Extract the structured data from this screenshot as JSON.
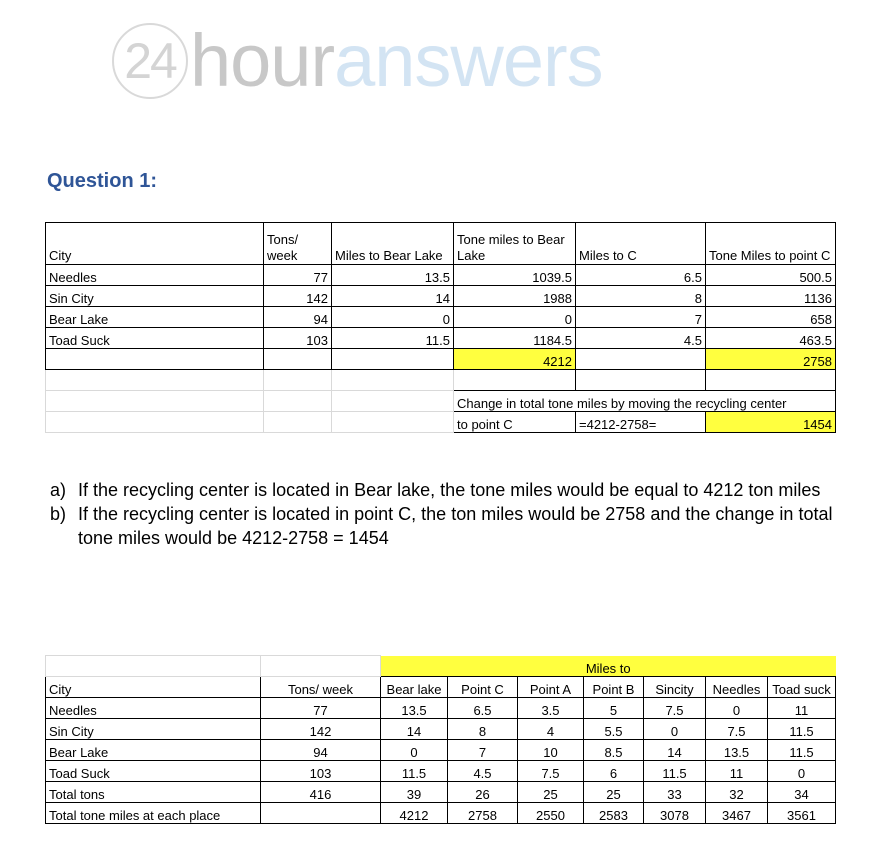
{
  "logo": {
    "num": "24",
    "part1": "hour",
    "part2": "answers"
  },
  "heading": "Question 1:",
  "table1": {
    "headers": [
      "City",
      "Tons/ week",
      "Miles to Bear Lake",
      "Tone miles to Bear Lake",
      "Miles to C",
      "Tone Miles to point C"
    ],
    "rows": [
      [
        "Needles",
        "77",
        "13.5",
        "1039.5",
        "6.5",
        "500.5"
      ],
      [
        "Sin City",
        "142",
        "14",
        "1988",
        "8",
        "1136"
      ],
      [
        "Bear Lake",
        "94",
        "0",
        "0",
        "7",
        "658"
      ],
      [
        "Toad Suck",
        "103",
        "11.5",
        "1184.5",
        "4.5",
        "463.5"
      ]
    ],
    "total_bear": "4212",
    "total_c": "2758",
    "change_label_1": "Change in total tone miles by moving the recycling center",
    "change_label_2": "to point C",
    "change_formula": "=4212-2758=",
    "change_value": "1454"
  },
  "answers": [
    {
      "marker": "a)",
      "text": "If the recycling center is located in Bear lake, the tone miles would be equal to 4212 ton miles"
    },
    {
      "marker": "b)",
      "text": "If the recycling center is located in point C, the ton miles would be 2758 and the change in total tone miles would be 4212-2758 = 1454"
    }
  ],
  "table2": {
    "group_header": "Miles to",
    "headers": [
      "City",
      "Tons/ week",
      "Bear lake",
      "Point C",
      "Point A",
      "Point B",
      "Sincity",
      "Needles",
      "Toad suck"
    ],
    "rows": [
      [
        "Needles",
        "77",
        "13.5",
        "6.5",
        "3.5",
        "5",
        "7.5",
        "0",
        "11"
      ],
      [
        "Sin City",
        "142",
        "14",
        "8",
        "4",
        "5.5",
        "0",
        "7.5",
        "11.5"
      ],
      [
        "Bear Lake",
        "94",
        "0",
        "7",
        "10",
        "8.5",
        "14",
        "13.5",
        "11.5"
      ],
      [
        "Toad Suck",
        "103",
        "11.5",
        "4.5",
        "7.5",
        "6",
        "11.5",
        "11",
        "0"
      ],
      [
        "Total tons",
        "416",
        "39",
        "26",
        "25",
        "25",
        "33",
        "32",
        "34"
      ],
      [
        "Total tone miles at each place",
        "",
        "4212",
        "2758",
        "2550",
        "2583",
        "3078",
        "3467",
        "3561"
      ]
    ]
  },
  "colors": {
    "highlight": "#ffff3f",
    "heading": "#2f5597"
  }
}
